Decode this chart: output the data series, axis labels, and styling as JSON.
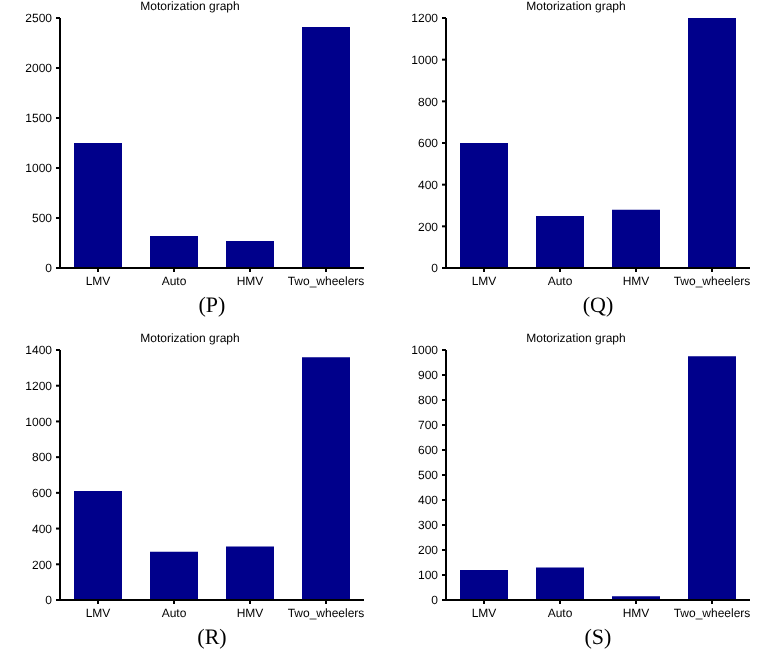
{
  "chart_data": [
    {
      "type": "bar",
      "title": "Motorization graph",
      "xlabel": "(P)",
      "categories": [
        "LMV",
        "Auto",
        "HMV",
        "Two_wheelers"
      ],
      "values": [
        1250,
        320,
        270,
        2410
      ],
      "color": "#00008b",
      "ylim": [
        0,
        2500
      ],
      "yticks": [
        0,
        500,
        1000,
        1500,
        2000,
        2500
      ]
    },
    {
      "type": "bar",
      "title": "Motorization graph",
      "xlabel": "(Q)",
      "categories": [
        "LMV",
        "Auto",
        "HMV",
        "Two_wheelers"
      ],
      "values": [
        600,
        250,
        280,
        1200
      ],
      "color": "#00008b",
      "ylim": [
        0,
        1200
      ],
      "yticks": [
        0,
        200,
        400,
        600,
        800,
        1000,
        1200
      ]
    },
    {
      "type": "bar",
      "title": "Motorization graph",
      "xlabel": "(R)",
      "categories": [
        "LMV",
        "Auto",
        "HMV",
        "Two_wheelers"
      ],
      "values": [
        610,
        270,
        300,
        1360
      ],
      "color": "#00008b",
      "ylim": [
        0,
        1400
      ],
      "yticks": [
        0,
        200,
        400,
        600,
        800,
        1000,
        1200,
        1400
      ]
    },
    {
      "type": "bar",
      "title": "Motorization graph",
      "xlabel": "(S)",
      "categories": [
        "LMV",
        "Auto",
        "HMV",
        "Two_wheelers"
      ],
      "values": [
        120,
        130,
        15,
        975
      ],
      "color": "#00008b",
      "ylim": [
        0,
        1000
      ],
      "yticks": [
        0,
        100,
        200,
        300,
        400,
        500,
        600,
        700,
        800,
        900,
        1000
      ]
    }
  ]
}
